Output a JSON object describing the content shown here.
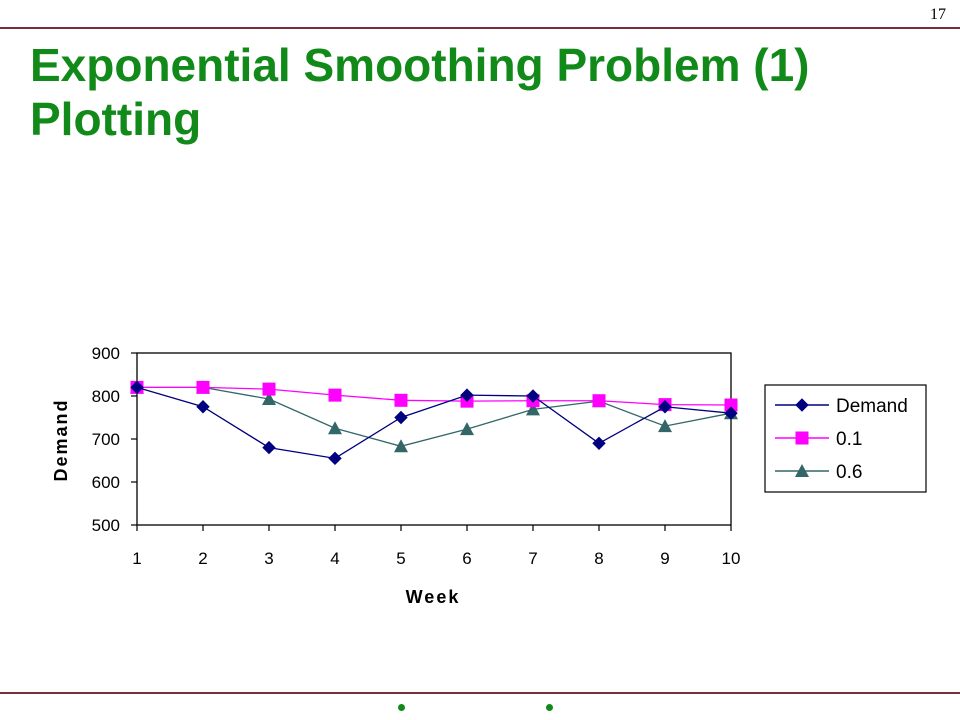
{
  "slide": {
    "page_number": "17",
    "title_line1": "Exponential Smoothing Problem (1)",
    "title_line2": "Plotting"
  },
  "colors": {
    "title": "#118a1a",
    "rule": "#7a2e3c",
    "demand": "#000080",
    "alpha_01": "#ff00ff",
    "alpha_06": "#336666"
  },
  "chart_data": {
    "type": "line",
    "x": [
      1,
      2,
      3,
      4,
      5,
      6,
      7,
      8,
      9,
      10
    ],
    "xlabel": "Week",
    "ylabel": "Demand",
    "ylim": [
      500,
      900
    ],
    "yticks": [
      500,
      600,
      700,
      800,
      900
    ],
    "grid": false,
    "legend_position": "right",
    "series": [
      {
        "name": "Demand",
        "marker": "diamond",
        "values": [
          820,
          775,
          680,
          655,
          750,
          802,
          800,
          690,
          775,
          760
        ]
      },
      {
        "name": "0.1",
        "marker": "square",
        "values": [
          820,
          820,
          816,
          802,
          790,
          788,
          789,
          789,
          780,
          779
        ]
      },
      {
        "name": "0.6",
        "marker": "triangle",
        "values": [
          820,
          820,
          793,
          725,
          683,
          723,
          769,
          788,
          730,
          760
        ]
      }
    ]
  }
}
